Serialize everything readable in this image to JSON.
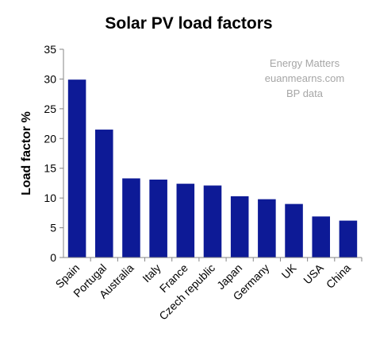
{
  "chart_data": {
    "type": "bar",
    "title": "Solar PV load factors",
    "xlabel": "",
    "ylabel": "Load factor %",
    "ylim": [
      0,
      35
    ],
    "yticks": [
      0,
      5,
      10,
      15,
      20,
      25,
      30,
      35
    ],
    "grid": false,
    "categories": [
      "Spain",
      "Portugal",
      "Australia",
      "Italy",
      "France",
      "Czech republic",
      "Japan",
      "Germany",
      "UK",
      "USA",
      "China"
    ],
    "values": [
      29.9,
      21.5,
      13.3,
      13.1,
      12.4,
      12.1,
      10.3,
      9.8,
      9.0,
      6.9,
      6.2
    ],
    "bar_color": "#0d1a96",
    "annotation_lines": [
      "Energy Matters",
      "euanmearns.com",
      "BP data"
    ]
  }
}
